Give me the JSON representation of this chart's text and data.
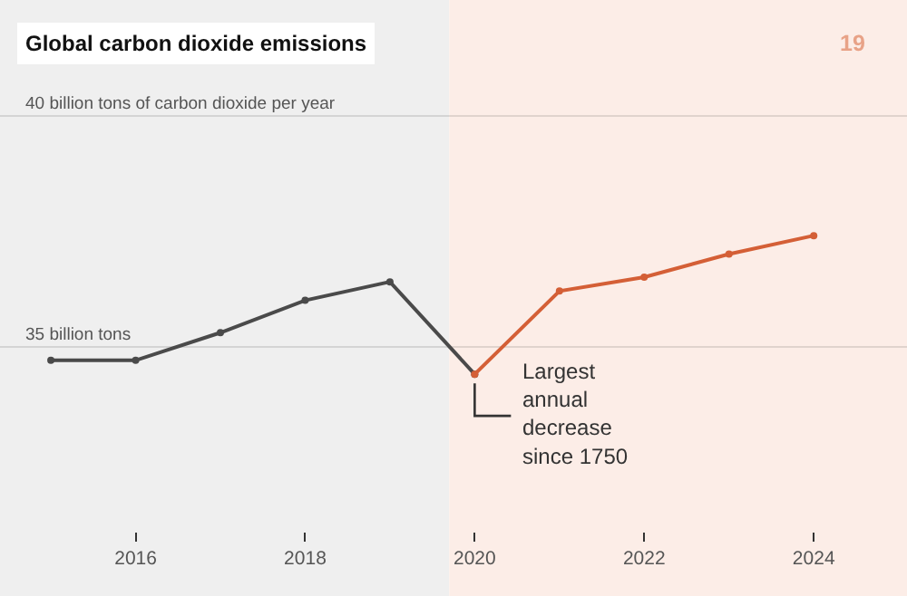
{
  "chart_data": {
    "type": "line",
    "title": "Global carbon dioxide emissions",
    "annotations": [
      {
        "text": "Largest\nannual\ndecrease\nsince 1750",
        "x": 2020,
        "y": 34.4
      },
      "19"
    ],
    "series": [
      {
        "color": "#4a4a4a",
        "x": [
          2015,
          2016,
          2017,
          2018,
          2019,
          2020
        ],
        "values": [
          34.7,
          34.7,
          35.3,
          36.0,
          36.4,
          34.4
        ]
      },
      {
        "color": "#d45f36",
        "x": [
          2020,
          2021,
          2022,
          2023,
          2024
        ],
        "values": [
          34.4,
          36.2,
          36.5,
          37.0,
          37.4
        ]
      }
    ],
    "xlim": [
      2014.4,
      2025.1
    ],
    "xticks": [
      2016,
      2018,
      2020,
      2022,
      2024
    ],
    "ylim": [
      29.6,
      42.5
    ],
    "yticks": [
      {
        "value": 35,
        "label": "35 billion tons"
      },
      {
        "value": 40,
        "label": "40 billion tons of carbon dioxide per year"
      }
    ],
    "bands": [
      {
        "axis": "x",
        "from": 2014.4,
        "to": 2019.7,
        "color": "#efefef"
      },
      {
        "axis": "x",
        "from": 2019.7,
        "to": 2025.1,
        "color": "#fcede7"
      }
    ],
    "grid": "y",
    "marker": "circle",
    "line_style": "solid"
  }
}
